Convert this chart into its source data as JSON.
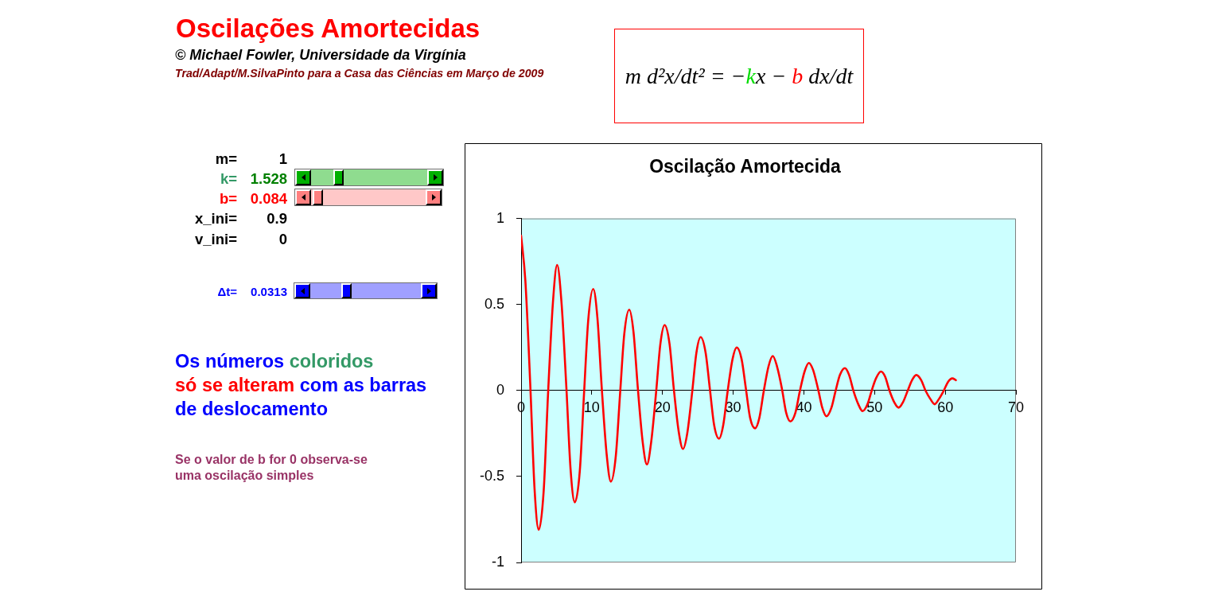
{
  "chart_data": {
    "type": "line",
    "title": "Oscilação Amortecida",
    "x": [
      0,
      0.6,
      1.3,
      1.9,
      2.5,
      3.2,
      3.8,
      4.5,
      5.1,
      5.7,
      6.4,
      7,
      7.6,
      8.3,
      8.9,
      9.5,
      10.2,
      10.8,
      11.4,
      12.1,
      12.7,
      13.4,
      14,
      14.6,
      15.3,
      15.9,
      16.5,
      17.2,
      17.8,
      18.4,
      19.1,
      19.7,
      20.3,
      21,
      21.6,
      22.3,
      22.9,
      23.5,
      24.2,
      24.8,
      25.4,
      26.1,
      26.7,
      27.3,
      28,
      28.6,
      29.2,
      29.9,
      30.5,
      31.2,
      31.8,
      32.4,
      33.1,
      33.7,
      34.3,
      35,
      35.6,
      36.2,
      36.9,
      37.5,
      38.1,
      38.8,
      39.4,
      40.1,
      40.7,
      41.3,
      42,
      42.6,
      43.2,
      43.9,
      44.5,
      45.1,
      45.8,
      46.4,
      47,
      47.7,
      48.3,
      49,
      49.6,
      50.2,
      50.9,
      51.5,
      52.1,
      52.8,
      53.4,
      54,
      54.7,
      55.3,
      55.9,
      56.6,
      57.2,
      57.9,
      58.5,
      59.1,
      59.8,
      60.4,
      61,
      61.5
    ],
    "series": [
      {
        "color": "#ff0000",
        "values": [
          0.9,
          0.64,
          0.03,
          -0.57,
          -0.81,
          -0.58,
          -0.03,
          0.51,
          0.73,
          0.52,
          0.02,
          -0.46,
          -0.65,
          -0.47,
          -0.02,
          0.41,
          0.59,
          0.42,
          0.02,
          -0.37,
          -0.53,
          -0.38,
          -0.02,
          0.33,
          0.47,
          0.34,
          0.02,
          -0.3,
          -0.43,
          -0.3,
          -0.01,
          0.27,
          0.38,
          0.27,
          0.01,
          -0.24,
          -0.34,
          -0.25,
          -0.01,
          0.22,
          0.31,
          0.22,
          0.01,
          -0.2,
          -0.28,
          -0.2,
          -0.01,
          0.18,
          0.25,
          0.18,
          0.01,
          -0.16,
          -0.22,
          -0.16,
          -0.01,
          0.14,
          0.2,
          0.14,
          0.01,
          -0.13,
          -0.18,
          -0.13,
          -0.01,
          0.11,
          0.16,
          0.12,
          0.01,
          -0.1,
          -0.15,
          -0.1,
          0,
          0.09,
          0.13,
          0.09,
          0,
          -0.08,
          -0.12,
          -0.08,
          0,
          0.07,
          0.11,
          0.08,
          0,
          -0.07,
          -0.1,
          -0.07,
          0,
          0.06,
          0.09,
          0.06,
          0,
          -0.05,
          -0.08,
          -0.05,
          0,
          0.05,
          0.07,
          0.06
        ]
      }
    ],
    "xlim": [
      0,
      70
    ],
    "xticks": [
      0,
      10,
      20,
      30,
      40,
      50,
      60,
      70
    ],
    "ylim": [
      -1,
      1
    ],
    "yticks": [
      -1,
      -0.5,
      0,
      0.5,
      1
    ],
    "grid": false,
    "legend": false,
    "marker": "none",
    "line_style": "solid",
    "annotations": [
      "Oscilações Amortecidas",
      "© Michael Fowler, Universidade da Virgínia",
      "Trad/Adapt/M.SilvaPinto para a Casa das Ciências em Março de 2009",
      "m d²x/dt² = −kx − b dx/dt",
      "m= 1",
      "k= 1.528",
      "b= 0.084",
      "x_ini= 0.9",
      "v_ini= 0",
      "Δt= 0.0313",
      "Os números coloridos",
      "só se alteram com as barras",
      "de deslocamento",
      "Se o valor de b for 0 observa-se uma oscilação simples"
    ]
  }
}
